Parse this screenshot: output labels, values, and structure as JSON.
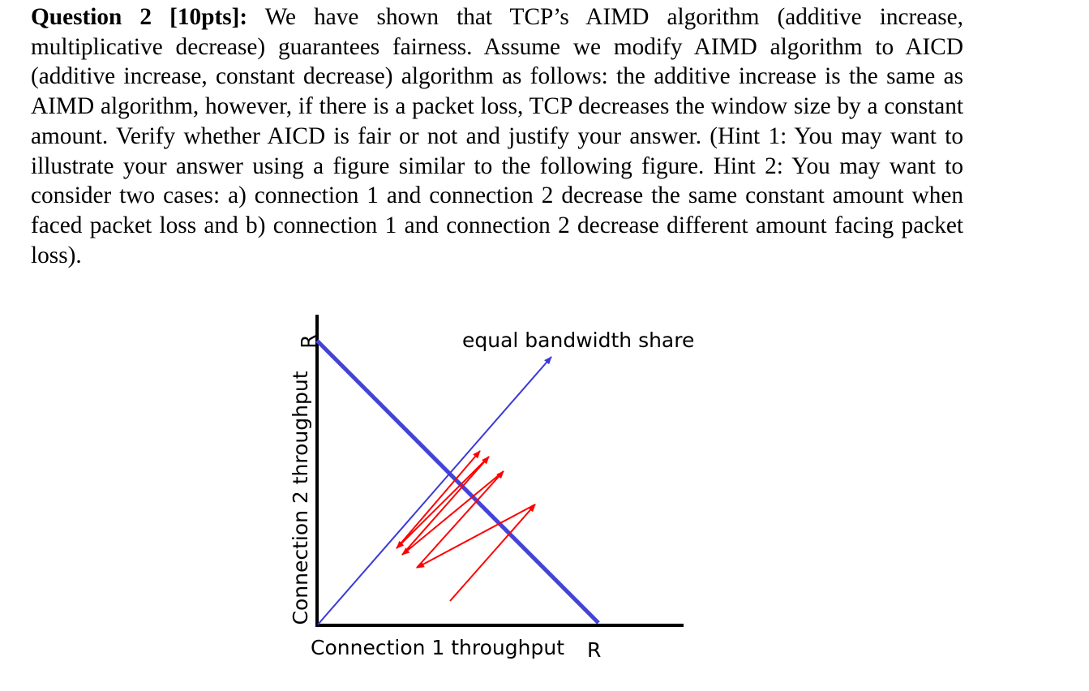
{
  "question": {
    "lead": "Question 2 [10pts]:",
    "body": " We have shown that TCP’s AIMD algorithm (additive increase, multiplicative decrease) guarantees fairness. Assume we modify AIMD algorithm to AICD (additive increase, constant decrease) algorithm as follows: the additive increase is the same as AIMD algorithm, however, if there is a packet loss, TCP decreases the window size by a constant amount. Verify whether AICD is fair or not and justify your answer. (Hint 1: You may want to illustrate your answer using a figure similar to the following figure. Hint 2: You may want to consider two cases: a) connection 1 and connection 2 decrease the same constant amount when faced packet loss and b) connection 1 and connection 2 decrease different amount facing packet loss)."
  },
  "figure": {
    "equal_share_label": "equal bandwidth share",
    "y_axis_label": "Connection 2 throughput",
    "y_axis_max_label": "R",
    "x_axis_label": "Connection 1 throughput",
    "x_axis_max_label": "R",
    "colors": {
      "axes": "#000000",
      "full_utilization_line": "#4343d8",
      "equal_share_line": "#3a3ad6",
      "trajectory": "#ff0000"
    }
  }
}
